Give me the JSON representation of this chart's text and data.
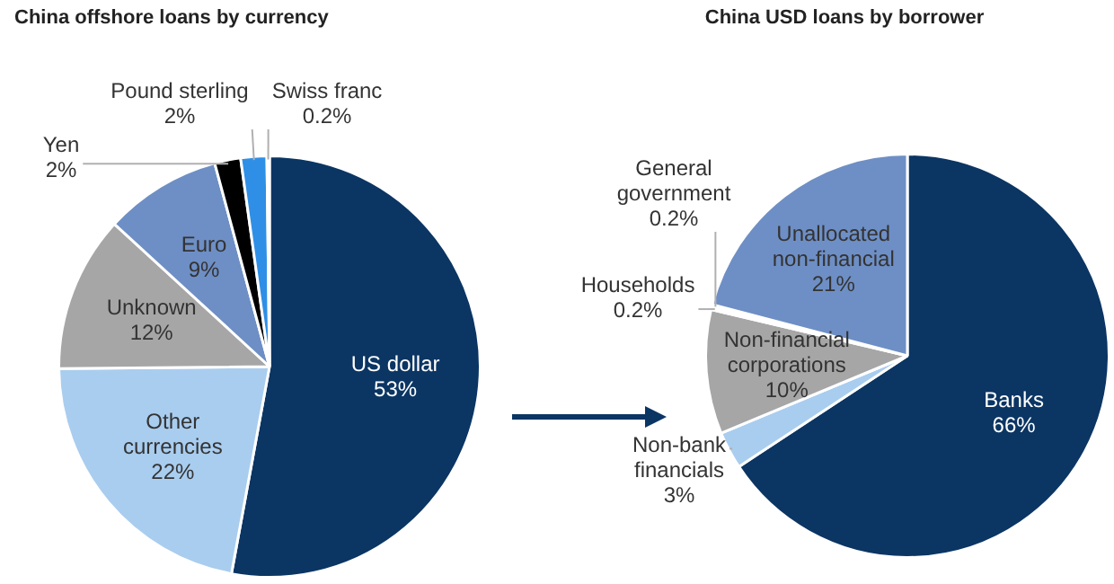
{
  "chart_data": [
    {
      "type": "pie",
      "title": "China offshore loans by currency",
      "categories": [
        "US dollar",
        "Other currencies",
        "Unknown",
        "Euro",
        "Yen",
        "Pound sterling",
        "Swiss franc"
      ],
      "values": [
        53,
        22,
        12,
        9,
        2,
        2,
        0.2
      ],
      "colors": [
        "#0b3563",
        "#a9cdef",
        "#a6a6a6",
        "#6e8fc5",
        "#000000",
        "#2f8fe6",
        "#c8dcf0"
      ],
      "value_labels": [
        "53%",
        "22%",
        "12%",
        "9%",
        "2%",
        "2%",
        "0.2%"
      ]
    },
    {
      "type": "pie",
      "title": "China USD loans by borrower",
      "categories": [
        "Banks",
        "Non-bank financials",
        "Non-financial corporations",
        "Households",
        "General government",
        "Unallocated non-financial"
      ],
      "values": [
        66,
        3,
        10,
        0.2,
        0.2,
        21
      ],
      "colors": [
        "#0b3563",
        "#a9cdef",
        "#a6a6a6",
        "#ffffff",
        "#ffffff",
        "#6e8fc5"
      ],
      "value_labels": [
        "66%",
        "3%",
        "10%",
        "0.2%",
        "0.2%",
        "21%"
      ]
    }
  ]
}
